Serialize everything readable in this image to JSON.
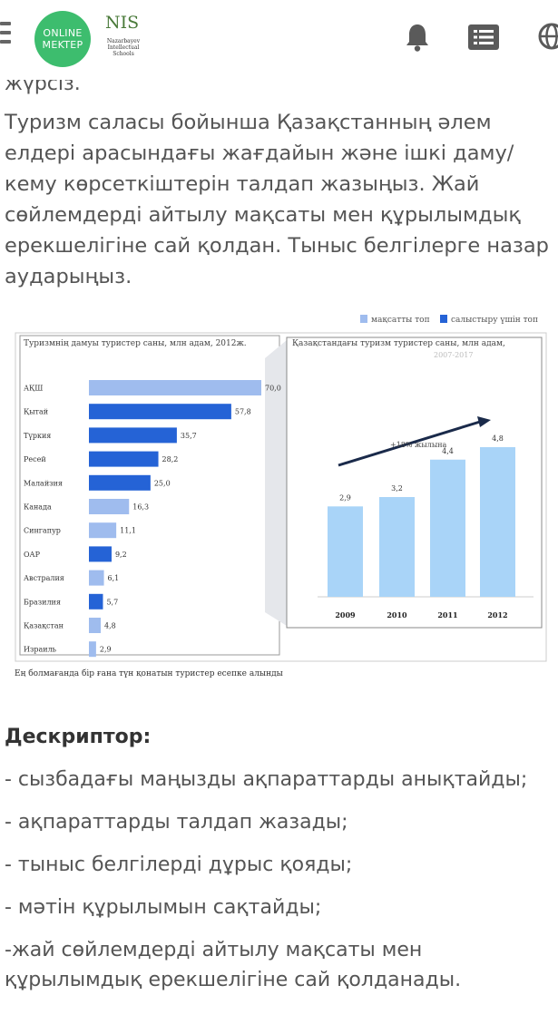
{
  "header": {
    "logo_text": "ONLINE MEKTEP",
    "nis_logo": "NIS",
    "nis_sub": "Nazarbayev Intellectual Schools"
  },
  "content": {
    "cut_line": "жүрсіз.",
    "task": "Туризм саласы бойынша Қазақстанның әлем елдері арасындағы жағдайын және ішкі даму/кему көрсеткіштерін талдап жазыңыз. Жай сөйлемдерді айтылу мақсаты мен құрылымдық ерекшелігіне сай қолдан. Тыныс белгілерге назар аударыңыз."
  },
  "figure": {
    "legend_target": "мақсатты топ",
    "legend_compare": "салыстыру үшін топ",
    "footnote": "Ең болмағанда бір ғана түн қонатын туристер есепке алынды"
  },
  "chart_data": [
    {
      "type": "bar",
      "orientation": "horizontal",
      "title": "Туризмнің дамуы туристер саны, млн адам, 2012ж.",
      "categories": [
        "АҚШ",
        "Қытай",
        "Түркия",
        "Ресей",
        "Малайзия",
        "Канада",
        "Сингапур",
        "ОАР",
        "Австралия",
        "Бразилия",
        "Қазақстан",
        "Израиль"
      ],
      "values": [
        70.0,
        57.8,
        35.7,
        28.2,
        25.0,
        16.3,
        11.1,
        9.2,
        6.1,
        5.7,
        4.8,
        2.9
      ],
      "value_labels": [
        "70,0",
        "57,8",
        "35,7",
        "28,2",
        "25,0",
        "16,3",
        "11,1",
        "9,2",
        "6,1",
        "5,7",
        "4,8",
        "2,9"
      ],
      "group": [
        "target",
        "compare",
        "compare",
        "compare",
        "compare",
        "target",
        "target",
        "compare",
        "target",
        "compare",
        "target",
        "target"
      ],
      "colors": {
        "target": "#9fbcee",
        "compare": "#2563d6"
      }
    },
    {
      "type": "bar",
      "title": "Қазақстандағы туризм туристер саны, млн адам,",
      "subtitle": "2007-2017",
      "categories": [
        "2009",
        "2010",
        "2011",
        "2012"
      ],
      "values": [
        2.9,
        3.2,
        4.4,
        4.8
      ],
      "value_labels": [
        "2,9",
        "3,2",
        "4,4",
        "4,8"
      ],
      "annotation": "+18% жылына",
      "color": "#a9d4f8"
    }
  ],
  "descriptor": {
    "title": "Дескриптор:",
    "items": [
      "- сызбадағы маңызды ақпараттарды анықтайды;",
      "- ақпараттарды талдап жазады;",
      "- тыныс белгілерді дұрыс қояды;",
      "- мәтін құрылымын сақтайды;",
      "-жай сөйлемдерді айтылу мақсаты мен құрылымдық ерекшелігіне сай қолданады."
    ]
  }
}
